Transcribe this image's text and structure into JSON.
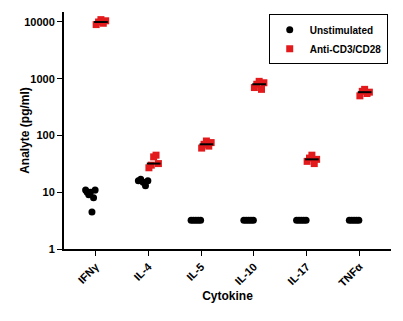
{
  "chart_data": {
    "type": "scatter",
    "x_label": "Cytokine",
    "y_label": "Analyte (pg/ml)",
    "categories": [
      "IFNγ",
      "IL-4",
      "IL-5",
      "IL-10",
      "IL-17",
      "TNFα"
    ],
    "log": "y",
    "grid": false,
    "legend": "top right",
    "ylim": [
      1,
      15000
    ],
    "yticks": [
      1,
      10,
      100,
      1000,
      10000
    ],
    "series": [
      {
        "name": "Unstimulated",
        "color": "#000000",
        "marker": "circle",
        "values": [
          [
            11,
            10,
            9,
            10,
            4.5,
            8,
            11
          ],
          [
            16,
            17,
            15,
            13,
            16
          ],
          [
            3.2,
            3.2,
            3.2,
            3.2,
            3.2
          ],
          [
            3.2,
            3.2,
            3.2,
            3.2,
            3.2
          ],
          [
            3.2,
            3.2,
            3.2,
            3.2,
            3.2
          ],
          [
            3.2,
            3.2,
            3.2,
            3.2,
            3.2
          ]
        ],
        "medians": [
          10,
          16,
          3.2,
          3.2,
          3.2,
          3.2
        ]
      },
      {
        "name": "Anti-CD3/CD28",
        "color": "#e31a1c",
        "marker": "square",
        "values": [
          [
            9000,
            10000,
            11000,
            9500,
            10500
          ],
          [
            27,
            30,
            42,
            45,
            32
          ],
          [
            60,
            70,
            80,
            65,
            75
          ],
          [
            700,
            800,
            900,
            650,
            850
          ],
          [
            35,
            40,
            45,
            32,
            38
          ],
          [
            500,
            600,
            650,
            550,
            580
          ]
        ],
        "medians": [
          10000,
          32,
          70,
          800,
          38,
          580
        ]
      }
    ]
  }
}
